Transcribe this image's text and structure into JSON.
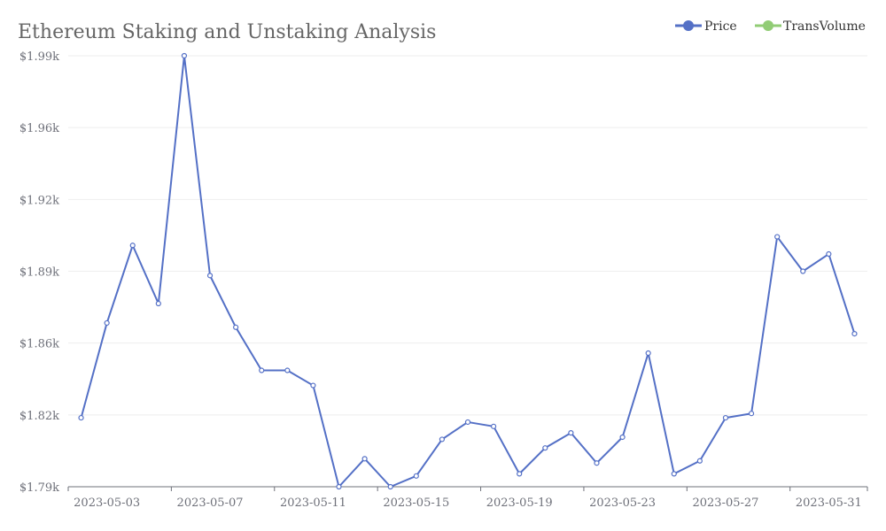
{
  "chart_data": {
    "type": "line",
    "title": "Ethereum Staking and Unstaking Analysis",
    "legend": {
      "position": "top-right",
      "items": [
        {
          "name": "Price",
          "color": "#5470c6"
        },
        {
          "name": "TransVolume",
          "color": "#91cc75"
        }
      ]
    },
    "x": [
      "2023-05-02",
      "2023-05-03",
      "2023-05-04",
      "2023-05-05",
      "2023-05-06",
      "2023-05-07",
      "2023-05-08",
      "2023-05-09",
      "2023-05-10",
      "2023-05-11",
      "2023-05-12",
      "2023-05-13",
      "2023-05-14",
      "2023-05-15",
      "2023-05-16",
      "2023-05-17",
      "2023-05-18",
      "2023-05-19",
      "2023-05-20",
      "2023-05-21",
      "2023-05-22",
      "2023-05-23",
      "2023-05-24",
      "2023-05-25",
      "2023-05-26",
      "2023-05-27",
      "2023-05-28",
      "2023-05-29",
      "2023-05-30",
      "2023-05-31",
      "2023-06-01"
    ],
    "x_tick_labels": [
      "2023-05-03",
      "2023-05-07",
      "2023-05-11",
      "2023-05-15",
      "2023-05-19",
      "2023-05-23",
      "2023-05-27",
      "2023-05-31"
    ],
    "y_tick_labels": [
      "$1.79k",
      "$1.82k",
      "$1.86k",
      "$1.89k",
      "$1.92k",
      "$1.96k",
      "$1.99k"
    ],
    "ylim": [
      1790,
      1990
    ],
    "grid": true,
    "series": [
      {
        "name": "Price",
        "color": "#5470c6",
        "values": [
          1822,
          1866,
          1902,
          1875,
          1990,
          1888,
          1864,
          1844,
          1844,
          1837,
          1790,
          1803,
          1790,
          1795,
          1812,
          1820,
          1818,
          1796,
          1808,
          1815,
          1801,
          1813,
          1852,
          1796,
          1802,
          1822,
          1824,
          1906,
          1890,
          1898,
          1861
        ]
      }
    ]
  }
}
